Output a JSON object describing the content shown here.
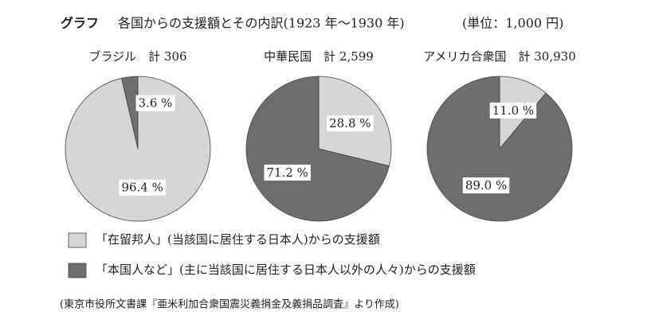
{
  "header": {
    "tag": "グラフ",
    "title": "各国からの支援額とその内訳(1923 年～1930 年)",
    "unit": "(単位：1,000 円)"
  },
  "legend": [
    {
      "label": "「在留邦人」(当該国に居住する日本人)からの支援額",
      "color": "#d6d6d6"
    },
    {
      "label": "「本国人など」(主に当該国に居住する日本人以外の人々)からの支援額",
      "color": "#6e6e6e"
    }
  ],
  "chart_data": [
    {
      "type": "pie",
      "title": "ブラジル　計 306",
      "values": [
        96.4,
        3.6
      ],
      "value_labels": [
        "96.4 %",
        "3.6 %"
      ]
    },
    {
      "type": "pie",
      "title": "中華民国　計 2,599",
      "values": [
        28.8,
        71.2
      ],
      "value_labels": [
        "28.8 %",
        "71.2 %"
      ]
    },
    {
      "type": "pie",
      "title": "アメリカ合衆国　計 30,930",
      "values": [
        11.0,
        89.0
      ],
      "value_labels": [
        "11.0 %",
        "89.0 %"
      ]
    }
  ],
  "source": "(東京市役所文書課『亜米利加合衆国震災義捐金及義捐品調査』より作成)"
}
